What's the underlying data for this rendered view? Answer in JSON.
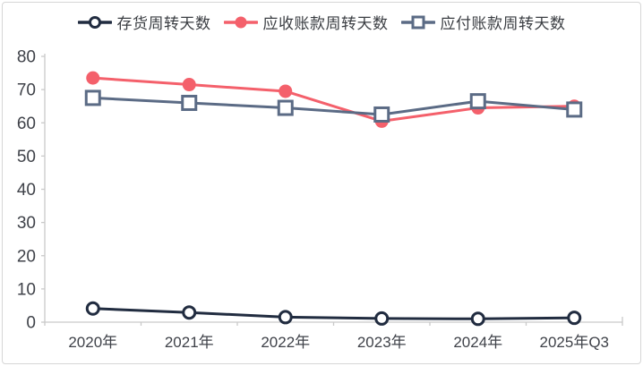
{
  "chart_data": {
    "type": "line",
    "title": "",
    "categories": [
      "2020年",
      "2021年",
      "2022年",
      "2023年",
      "2024年",
      "2025年Q3"
    ],
    "series": [
      {
        "name": "存货周转天数",
        "marker": "circle-open",
        "color": "#212c40",
        "values": [
          4.1,
          2.9,
          1.5,
          1.1,
          1.0,
          1.3
        ]
      },
      {
        "name": "应收账款周转天数",
        "marker": "circle-filled",
        "color": "#f4606b",
        "values": [
          73.5,
          71.5,
          69.5,
          60.5,
          64.5,
          65
        ]
      },
      {
        "name": "应付账款周转天数",
        "marker": "square-open",
        "color": "#5b6b85",
        "values": [
          67.5,
          66,
          64.5,
          62.5,
          66.5,
          64
        ]
      }
    ],
    "ylim": [
      0,
      80
    ],
    "ytick_step": 10,
    "yticks": [
      0,
      10,
      20,
      30,
      40,
      50,
      60,
      70,
      80
    ],
    "xlabel": "",
    "ylabel": "",
    "legend_position": "top",
    "grid": false,
    "axis_color": "#c9c9c9",
    "label_color": "#3f4249",
    "marker_fill": "#ffffff"
  }
}
